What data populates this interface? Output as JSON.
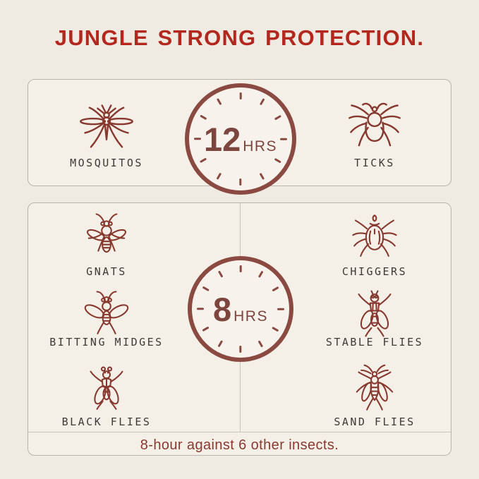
{
  "title": "JUNGLE STRONG PROTECTION.",
  "colors": {
    "accent_red": "#b3281e",
    "clock_maroon": "#8a4a42",
    "icon_stroke": "#87392f",
    "label_text": "#3d3b38",
    "page_bg": "#f0ebe2",
    "panel_bg": "#f4efe7"
  },
  "panel_12hr": {
    "clock": {
      "hours": "12",
      "unit": "HRS"
    },
    "insects": [
      {
        "name": "mosquito",
        "label": "MOSQUITOS"
      },
      {
        "name": "tick",
        "label": "TICKS"
      }
    ]
  },
  "panel_8hr": {
    "clock": {
      "hours": "8",
      "unit": "HRS"
    },
    "left_insects": [
      {
        "name": "gnat",
        "label": "GNATS"
      },
      {
        "name": "biting-midge",
        "label": "BITTING MIDGES"
      },
      {
        "name": "black-fly",
        "label": "BLACK FLIES"
      }
    ],
    "right_insects": [
      {
        "name": "chigger",
        "label": "CHIGGERS"
      },
      {
        "name": "stable-fly",
        "label": "STABLE FLIES"
      },
      {
        "name": "sand-fly",
        "label": "SAND FLIES"
      }
    ],
    "footer": "8-hour against 6 other insects."
  }
}
